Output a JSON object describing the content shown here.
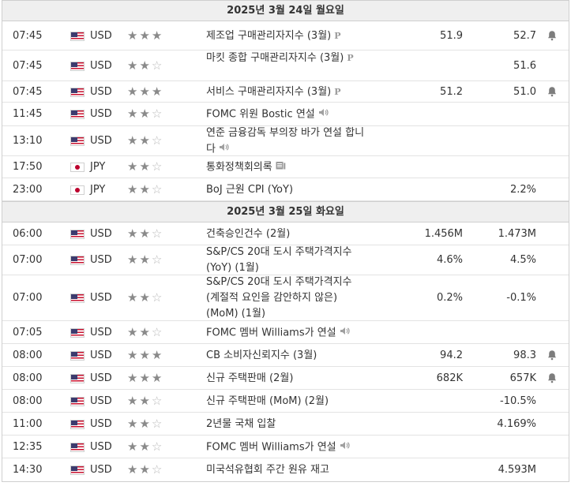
{
  "days": [
    {
      "header": "2025년 3월 24일 월요일",
      "events": [
        {
          "time": "07:45",
          "currency": "USD",
          "country": "us",
          "stars": 3,
          "event": "제조업 구매관리자지수 (3월)",
          "prelim": true,
          "actual": "51.9",
          "forecast": "52.7",
          "alert": true
        },
        {
          "time": "07:45",
          "currency": "USD",
          "country": "us",
          "stars": 2,
          "event": "마킷 종합 구매관리자지수 (3월)",
          "prelim": true,
          "actual": "",
          "forecast": "51.6",
          "alert": false
        },
        {
          "time": "07:45",
          "currency": "USD",
          "country": "us",
          "stars": 3,
          "event": "서비스 구매관리자지수 (3월)",
          "prelim": true,
          "actual": "51.2",
          "forecast": "51.0",
          "alert": true
        },
        {
          "time": "11:45",
          "currency": "USD",
          "country": "us",
          "stars": 2,
          "event": "FOMC 위원 Bostic 연설",
          "speech": true,
          "actual": "",
          "forecast": "",
          "alert": false
        },
        {
          "time": "13:10",
          "currency": "USD",
          "country": "us",
          "stars": 2,
          "event": "연준 금융감독 부의장 바가 연설 합니다",
          "speech": true,
          "actual": "",
          "forecast": "",
          "alert": false
        },
        {
          "time": "17:50",
          "currency": "JPY",
          "country": "jp",
          "stars": 2,
          "event": "통화정책회의록",
          "doc": true,
          "actual": "",
          "forecast": "",
          "alert": false
        },
        {
          "time": "23:00",
          "currency": "JPY",
          "country": "jp",
          "stars": 2,
          "event": "BoJ 근원 CPI (YoY)",
          "actual": "",
          "forecast": "2.2%",
          "alert": false
        }
      ]
    },
    {
      "header": "2025년 3월 25일 화요일",
      "events": [
        {
          "time": "06:00",
          "currency": "USD",
          "country": "us",
          "stars": 2,
          "event": "건축승인건수 (2월)",
          "actual": "1.456M",
          "forecast": "1.473M",
          "alert": false
        },
        {
          "time": "07:00",
          "currency": "USD",
          "country": "us",
          "stars": 2,
          "event": "S&P/CS 20대 도시 주택가격지수 (YoY) (1월)",
          "actual": "4.6%",
          "forecast": "4.5%",
          "alert": false
        },
        {
          "time": "07:00",
          "currency": "USD",
          "country": "us",
          "stars": 2,
          "event": "S&P/CS 20대 도시 주택가격지수 (계절적 요인을 감안하지 않은) (MoM) (1월)",
          "actual": "0.2%",
          "forecast": "-0.1%",
          "alert": false
        },
        {
          "time": "07:05",
          "currency": "USD",
          "country": "us",
          "stars": 2,
          "event": "FOMC 멤버 Williams가 연설",
          "speech": true,
          "actual": "",
          "forecast": "",
          "alert": false
        },
        {
          "time": "08:00",
          "currency": "USD",
          "country": "us",
          "stars": 3,
          "event": "CB 소비자신뢰지수 (3월)",
          "actual": "94.2",
          "forecast": "98.3",
          "alert": true
        },
        {
          "time": "08:00",
          "currency": "USD",
          "country": "us",
          "stars": 3,
          "event": "신규 주택판매 (2월)",
          "actual": "682K",
          "forecast": "657K",
          "alert": true
        },
        {
          "time": "08:00",
          "currency": "USD",
          "country": "us",
          "stars": 2,
          "event": "신규 주택판매 (MoM) (2월)",
          "actual": "",
          "forecast": "-10.5%",
          "alert": false
        },
        {
          "time": "11:00",
          "currency": "USD",
          "country": "us",
          "stars": 2,
          "event": "2년물 국채 입찰",
          "actual": "",
          "forecast": "4.169%",
          "alert": false
        },
        {
          "time": "12:35",
          "currency": "USD",
          "country": "us",
          "stars": 2,
          "event": "FOMC 멤버 Williams가 연설",
          "speech": true,
          "actual": "",
          "forecast": "",
          "alert": false
        },
        {
          "time": "14:30",
          "currency": "USD",
          "country": "us",
          "stars": 2,
          "event": "미국석유협회 주간 원유 재고",
          "actual": "",
          "forecast": "4.593M",
          "alert": false
        }
      ]
    }
  ],
  "icons": {
    "star_filled": "star-filled-icon",
    "star_empty": "star-empty-icon",
    "alert": "bell-icon",
    "speech": "speaker-icon",
    "prelim": "preliminary-icon",
    "doc": "document-icon"
  },
  "colors": {
    "header_bg": "#efefef",
    "border": "#cfcfcf",
    "star": "#8a8a8a"
  }
}
